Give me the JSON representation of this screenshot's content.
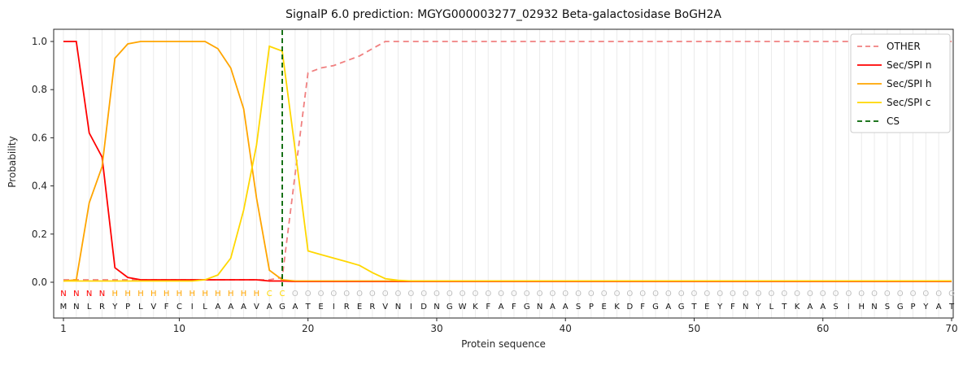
{
  "chart_data": {
    "type": "line",
    "title": "SignalP 6.0 prediction: MGYG000003277_02932 Beta-galactosidase BoGH2A",
    "xlabel": "Protein sequence",
    "ylabel": "Probability",
    "ylim": [
      0.0,
      1.05
    ],
    "xticks": [
      1,
      10,
      20,
      30,
      40,
      50,
      60,
      70
    ],
    "yticks": [
      "0.0",
      "0.2",
      "0.4",
      "0.6",
      "0.8",
      "1.0"
    ],
    "grid": "vertical-per-residue",
    "legend_position": "upper right",
    "n_positions": 70,
    "x_start": 1,
    "series": [
      {
        "name": "OTHER",
        "color": "#f08080",
        "style": "dashed",
        "values": [
          0.01,
          0.01,
          0.01,
          0.01,
          0.01,
          0.01,
          0.01,
          0.01,
          0.01,
          0.01,
          0.01,
          0.01,
          0.01,
          0.01,
          0.01,
          0.01,
          0.01,
          0.02,
          0.45,
          0.87,
          0.89,
          0.9,
          0.92,
          0.94,
          0.97,
          1.0,
          1.0,
          1.0,
          1.0,
          1.0,
          1.0,
          1.0,
          1.0,
          1.0,
          1.0,
          1.0,
          1.0,
          1.0,
          1.0,
          1.0,
          1.0,
          1.0,
          1.0,
          1.0,
          1.0,
          1.0,
          1.0,
          1.0,
          1.0,
          1.0,
          1.0,
          1.0,
          1.0,
          1.0,
          1.0,
          1.0,
          1.0,
          1.0,
          1.0,
          1.0,
          1.0,
          1.0,
          1.0,
          1.0,
          1.0,
          1.0,
          1.0,
          1.0,
          1.0,
          1.0
        ]
      },
      {
        "name": "Sec/SPI n",
        "color": "#ff0000",
        "style": "solid",
        "values": [
          1.0,
          1.0,
          0.62,
          0.52,
          0.06,
          0.02,
          0.01,
          0.01,
          0.01,
          0.01,
          0.01,
          0.01,
          0.01,
          0.01,
          0.01,
          0.01,
          0.005,
          0.005,
          0.003,
          0.003,
          0.003,
          0.003,
          0.003,
          0.003,
          0.003,
          0.003,
          0.003,
          0.003,
          0.003,
          0.003,
          0.003,
          0.003,
          0.003,
          0.003,
          0.003,
          0.003,
          0.003,
          0.003,
          0.003,
          0.003,
          0.003,
          0.003,
          0.003,
          0.003,
          0.003,
          0.003,
          0.003,
          0.003,
          0.003,
          0.003,
          0.003,
          0.003,
          0.003,
          0.003,
          0.003,
          0.003,
          0.003,
          0.003,
          0.003,
          0.003,
          0.003,
          0.003,
          0.003,
          0.003,
          0.003,
          0.003,
          0.003,
          0.003,
          0.003,
          0.003
        ]
      },
      {
        "name": "Sec/SPI h",
        "color": "#ffa500",
        "style": "solid",
        "values": [
          0.005,
          0.01,
          0.33,
          0.48,
          0.93,
          0.99,
          1.0,
          1.0,
          1.0,
          1.0,
          1.0,
          1.0,
          0.97,
          0.89,
          0.72,
          0.35,
          0.05,
          0.01,
          0.005,
          0.005,
          0.005,
          0.005,
          0.005,
          0.005,
          0.005,
          0.005,
          0.005,
          0.005,
          0.005,
          0.005,
          0.005,
          0.005,
          0.005,
          0.005,
          0.005,
          0.005,
          0.005,
          0.005,
          0.005,
          0.005,
          0.005,
          0.005,
          0.005,
          0.005,
          0.005,
          0.005,
          0.005,
          0.005,
          0.005,
          0.005,
          0.005,
          0.005,
          0.005,
          0.005,
          0.005,
          0.005,
          0.005,
          0.005,
          0.005,
          0.005,
          0.005,
          0.005,
          0.005,
          0.005,
          0.005,
          0.005,
          0.005,
          0.005,
          0.005,
          0.005
        ]
      },
      {
        "name": "Sec/SPI c",
        "color": "#ffd700",
        "style": "solid",
        "values": [
          0.005,
          0.005,
          0.005,
          0.005,
          0.005,
          0.005,
          0.005,
          0.005,
          0.005,
          0.005,
          0.005,
          0.01,
          0.03,
          0.1,
          0.3,
          0.57,
          0.98,
          0.96,
          0.55,
          0.13,
          0.115,
          0.1,
          0.085,
          0.07,
          0.04,
          0.015,
          0.008,
          0.005,
          0.005,
          0.005,
          0.005,
          0.005,
          0.005,
          0.005,
          0.005,
          0.005,
          0.005,
          0.005,
          0.005,
          0.005,
          0.005,
          0.005,
          0.005,
          0.005,
          0.005,
          0.005,
          0.005,
          0.005,
          0.005,
          0.005,
          0.005,
          0.005,
          0.005,
          0.005,
          0.005,
          0.005,
          0.005,
          0.005,
          0.005,
          0.005,
          0.005,
          0.005,
          0.005,
          0.005,
          0.005,
          0.005,
          0.005,
          0.005,
          0.005,
          0.005
        ]
      }
    ],
    "cs_marker": {
      "name": "CS",
      "x": 18,
      "color": "#006400",
      "style": "dashed"
    },
    "region_labels": "NNNNHHHHHHHHHHHHCCOOOOOOOOOOOOOOOOOOOOOOOOOOOOOOOOOOOOOOOOOOOOOOOOOOOO",
    "region_colors": {
      "N": "#ff0000",
      "H": "#ffa500",
      "C": "#ffd700",
      "O": "#c0c0c0"
    },
    "sequence": "MNLRYPLVFCILAAAVAGATEIRERVNIDNGWKFAFGNAASPEKDFGAGTEYFNYLTKAASIHNSGPYAT"
  }
}
